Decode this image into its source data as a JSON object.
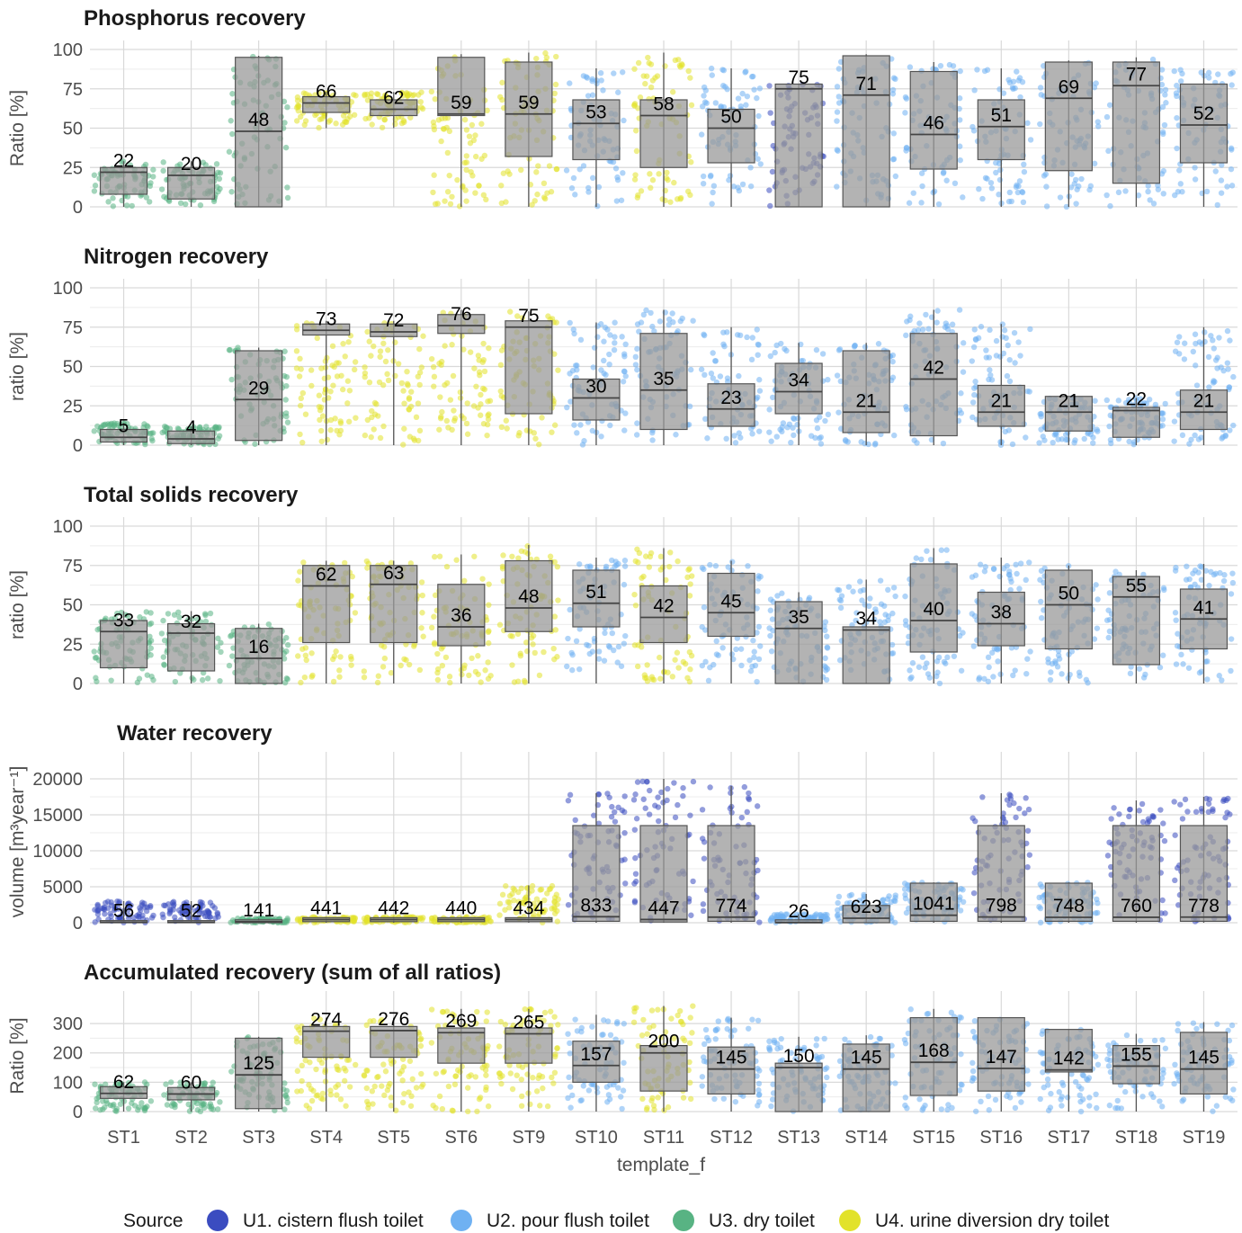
{
  "chart_data": {
    "type": "box",
    "x_label": "template_f",
    "categories": [
      "ST1",
      "ST2",
      "ST3",
      "ST4",
      "ST5",
      "ST6",
      "ST9",
      "ST10",
      "ST11",
      "ST12",
      "ST13",
      "ST14",
      "ST15",
      "ST16",
      "ST17",
      "ST18",
      "ST19"
    ],
    "legend": {
      "title": "Source",
      "items": [
        {
          "label": "U1. cistern flush toilet",
          "color": "#3b4cc0"
        },
        {
          "label": "U2. pour flush toilet",
          "color": "#6fb1f2"
        },
        {
          "label": "U3. dry toilet",
          "color": "#58b383"
        },
        {
          "label": "U4. urine diversion dry toilet",
          "color": "#e2e22a"
        }
      ]
    },
    "panels": [
      {
        "title": "Phosphorus recovery",
        "ylabel": "Ratio [%]",
        "ylim": [
          0,
          100
        ],
        "yticks": [
          0,
          25,
          50,
          75,
          100
        ],
        "medians": [
          22,
          20,
          48,
          66,
          62,
          59,
          59,
          53,
          58,
          50,
          75,
          71,
          46,
          51,
          69,
          77,
          52
        ],
        "boxes": [
          [
            8,
            25
          ],
          [
            5,
            25
          ],
          [
            0,
            95
          ],
          [
            60,
            70
          ],
          [
            58,
            68
          ],
          [
            58,
            95
          ],
          [
            32,
            92
          ],
          [
            30,
            68
          ],
          [
            25,
            68
          ],
          [
            28,
            62
          ],
          [
            0,
            78
          ],
          [
            0,
            96
          ],
          [
            24,
            86
          ],
          [
            30,
            68
          ],
          [
            23,
            92
          ],
          [
            15,
            92
          ],
          [
            28,
            78
          ]
        ],
        "whiskers": [
          [
            0,
            29
          ],
          [
            0,
            29
          ],
          [
            0,
            96
          ],
          [
            50,
            73
          ],
          [
            50,
            73
          ],
          [
            0,
            97
          ],
          [
            0,
            98
          ],
          [
            0,
            88
          ],
          [
            0,
            98
          ],
          [
            0,
            88
          ],
          [
            0,
            78
          ],
          [
            0,
            97
          ],
          [
            0,
            92
          ],
          [
            0,
            88
          ],
          [
            0,
            93
          ],
          [
            0,
            95
          ],
          [
            0,
            88
          ]
        ],
        "dominant_source": [
          2,
          2,
          2,
          3,
          3,
          3,
          3,
          1,
          3,
          1,
          0,
          1,
          1,
          1,
          1,
          1,
          1
        ]
      },
      {
        "title": "Nitrogen recovery",
        "ylabel": "ratio [%]",
        "ylim": [
          0,
          100
        ],
        "yticks": [
          0,
          25,
          50,
          75,
          100
        ],
        "medians": [
          5,
          4,
          29,
          73,
          72,
          76,
          75,
          30,
          35,
          23,
          34,
          21,
          42,
          21,
          21,
          22,
          21
        ],
        "boxes": [
          [
            2,
            10
          ],
          [
            1,
            9
          ],
          [
            3,
            60
          ],
          [
            70,
            77
          ],
          [
            69,
            77
          ],
          [
            71,
            83
          ],
          [
            20,
            79
          ],
          [
            16,
            42
          ],
          [
            10,
            71
          ],
          [
            12,
            39
          ],
          [
            20,
            52
          ],
          [
            8,
            60
          ],
          [
            6,
            71
          ],
          [
            12,
            38
          ],
          [
            9,
            31
          ],
          [
            5,
            24
          ],
          [
            10,
            35
          ]
        ],
        "whiskers": [
          [
            0,
            14
          ],
          [
            0,
            12
          ],
          [
            0,
            62
          ],
          [
            0,
            79
          ],
          [
            0,
            79
          ],
          [
            0,
            86
          ],
          [
            0,
            85
          ],
          [
            0,
            78
          ],
          [
            0,
            86
          ],
          [
            0,
            75
          ],
          [
            0,
            65
          ],
          [
            0,
            65
          ],
          [
            0,
            86
          ],
          [
            0,
            77
          ],
          [
            0,
            31
          ],
          [
            0,
            30
          ],
          [
            0,
            75
          ]
        ],
        "dominant_source": [
          2,
          2,
          2,
          3,
          3,
          3,
          3,
          1,
          1,
          1,
          1,
          1,
          1,
          1,
          1,
          1,
          1
        ]
      },
      {
        "title": "Total solids recovery",
        "ylabel": "ratio [%]",
        "ylim": [
          0,
          100
        ],
        "yticks": [
          0,
          25,
          50,
          75,
          100
        ],
        "medians": [
          33,
          32,
          16,
          62,
          63,
          36,
          48,
          51,
          42,
          45,
          35,
          34,
          40,
          38,
          50,
          55,
          41
        ],
        "boxes": [
          [
            10,
            40
          ],
          [
            8,
            38
          ],
          [
            0,
            35
          ],
          [
            26,
            75
          ],
          [
            26,
            75
          ],
          [
            24,
            63
          ],
          [
            33,
            78
          ],
          [
            36,
            72
          ],
          [
            26,
            62
          ],
          [
            30,
            70
          ],
          [
            0,
            52
          ],
          [
            0,
            36
          ],
          [
            20,
            76
          ],
          [
            24,
            58
          ],
          [
            22,
            72
          ],
          [
            12,
            68
          ],
          [
            22,
            60
          ]
        ],
        "whiskers": [
          [
            0,
            46
          ],
          [
            0,
            46
          ],
          [
            0,
            38
          ],
          [
            0,
            78
          ],
          [
            0,
            78
          ],
          [
            0,
            82
          ],
          [
            0,
            88
          ],
          [
            0,
            80
          ],
          [
            0,
            86
          ],
          [
            0,
            78
          ],
          [
            0,
            58
          ],
          [
            0,
            66
          ],
          [
            0,
            86
          ],
          [
            0,
            80
          ],
          [
            0,
            75
          ],
          [
            0,
            72
          ],
          [
            0,
            76
          ]
        ],
        "dominant_source": [
          2,
          2,
          2,
          3,
          3,
          3,
          3,
          1,
          3,
          1,
          1,
          1,
          1,
          1,
          1,
          1,
          1
        ]
      },
      {
        "title": "Water recovery",
        "ylabel": "volume [m³year⁻¹]",
        "ylim": [
          0,
          22500
        ],
        "yticks": [
          0,
          5000,
          10000,
          15000,
          20000
        ],
        "medians": [
          56,
          52,
          141,
          441,
          442,
          440,
          434,
          833,
          447,
          774,
          26,
          623,
          1041,
          798,
          748,
          760,
          778
        ],
        "boxes": [
          [
            0,
            300
          ],
          [
            0,
            300
          ],
          [
            0,
            400
          ],
          [
            150,
            700
          ],
          [
            150,
            700
          ],
          [
            150,
            700
          ],
          [
            150,
            700
          ],
          [
            200,
            13500
          ],
          [
            100,
            13500
          ],
          [
            200,
            13500
          ],
          [
            0,
            400
          ],
          [
            0,
            2400
          ],
          [
            200,
            5500
          ],
          [
            200,
            13500
          ],
          [
            200,
            5500
          ],
          [
            200,
            13500
          ],
          [
            200,
            13500
          ]
        ],
        "whiskers": [
          [
            0,
            3000
          ],
          [
            0,
            3000
          ],
          [
            0,
            600
          ],
          [
            0,
            800
          ],
          [
            0,
            800
          ],
          [
            0,
            800
          ],
          [
            0,
            5200
          ],
          [
            0,
            18000
          ],
          [
            0,
            20000
          ],
          [
            0,
            19000
          ],
          [
            0,
            1200
          ],
          [
            0,
            4000
          ],
          [
            0,
            5600
          ],
          [
            0,
            18000
          ],
          [
            0,
            5600
          ],
          [
            0,
            17000
          ],
          [
            0,
            17500
          ]
        ],
        "dominant_source": [
          0,
          0,
          2,
          3,
          3,
          3,
          3,
          0,
          0,
          0,
          1,
          1,
          1,
          0,
          1,
          0,
          0
        ]
      },
      {
        "title": "Accumulated recovery (sum of all ratios)",
        "ylabel": "Ratio [%]",
        "ylim": [
          0,
          380
        ],
        "yticks": [
          0,
          100,
          200,
          300
        ],
        "medians": [
          62,
          60,
          125,
          274,
          276,
          269,
          265,
          157,
          200,
          145,
          150,
          145,
          168,
          147,
          142,
          155,
          145
        ],
        "boxes": [
          [
            45,
            85
          ],
          [
            40,
            82
          ],
          [
            10,
            250
          ],
          [
            185,
            290
          ],
          [
            185,
            290
          ],
          [
            165,
            285
          ],
          [
            165,
            285
          ],
          [
            100,
            240
          ],
          [
            70,
            225
          ],
          [
            60,
            220
          ],
          [
            0,
            165
          ],
          [
            0,
            230
          ],
          [
            55,
            320
          ],
          [
            70,
            320
          ],
          [
            135,
            280
          ],
          [
            95,
            225
          ],
          [
            60,
            270
          ]
        ],
        "whiskers": [
          [
            0,
            100
          ],
          [
            0,
            100
          ],
          [
            0,
            255
          ],
          [
            0,
            320
          ],
          [
            0,
            320
          ],
          [
            0,
            350
          ],
          [
            0,
            350
          ],
          [
            0,
            330
          ],
          [
            0,
            360
          ],
          [
            0,
            320
          ],
          [
            0,
            255
          ],
          [
            0,
            260
          ],
          [
            0,
            350
          ],
          [
            0,
            320
          ],
          [
            0,
            280
          ],
          [
            0,
            265
          ],
          [
            0,
            305
          ]
        ],
        "dominant_source": [
          2,
          2,
          2,
          3,
          3,
          3,
          3,
          1,
          3,
          1,
          1,
          1,
          1,
          1,
          1,
          1,
          1
        ]
      }
    ]
  }
}
